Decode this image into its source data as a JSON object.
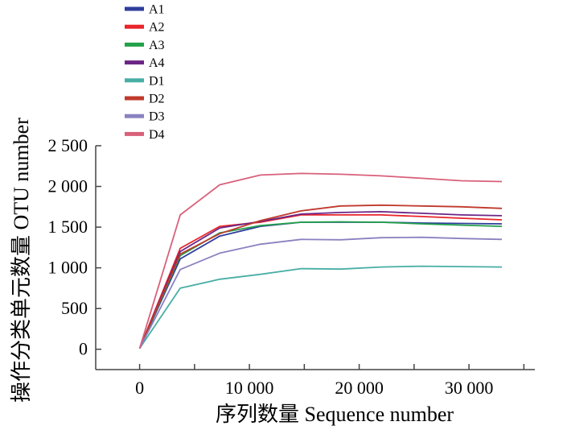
{
  "chart_data": {
    "type": "line",
    "xlabel": "序列数量 Sequence number",
    "ylabel": "操作分类单元数量 OTU number",
    "xlim": [
      -4000,
      36000
    ],
    "ylim": [
      -250,
      2500
    ],
    "x_ticks": [
      0,
      10000,
      20000,
      30000
    ],
    "x_tick_labels": [
      "0",
      "10 000",
      "20 000",
      "30 000"
    ],
    "y_ticks": [
      0,
      500,
      1000,
      1500,
      2000,
      2500
    ],
    "y_tick_labels": [
      "0",
      "500",
      "1 000",
      "1 500",
      "2 000",
      "2 500"
    ],
    "grid": false,
    "legend_position": "top-left",
    "x": [
      0,
      3700,
      7300,
      11000,
      14700,
      18300,
      22000,
      25700,
      29300,
      33000
    ],
    "series": [
      {
        "name": "A1",
        "color": "#2e3d9b",
        "values": [
          10,
          1110,
          1390,
          1510,
          1560,
          1560,
          1560,
          1550,
          1545,
          1540
        ]
      },
      {
        "name": "A2",
        "color": "#e8252b",
        "values": [
          10,
          1240,
          1510,
          1560,
          1650,
          1650,
          1650,
          1630,
          1610,
          1590
        ]
      },
      {
        "name": "A3",
        "color": "#22a14a",
        "values": [
          10,
          1150,
          1430,
          1520,
          1560,
          1565,
          1560,
          1540,
          1525,
          1510
        ]
      },
      {
        "name": "A4",
        "color": "#6b2585",
        "values": [
          10,
          1200,
          1490,
          1570,
          1660,
          1680,
          1690,
          1670,
          1650,
          1640
        ]
      },
      {
        "name": "D1",
        "color": "#48aea5",
        "values": [
          10,
          750,
          860,
          920,
          990,
          985,
          1010,
          1020,
          1015,
          1010
        ]
      },
      {
        "name": "D2",
        "color": "#c0392b",
        "values": [
          10,
          1170,
          1420,
          1580,
          1700,
          1760,
          1770,
          1760,
          1750,
          1730
        ]
      },
      {
        "name": "D3",
        "color": "#8a82c0",
        "values": [
          10,
          980,
          1180,
          1290,
          1350,
          1345,
          1370,
          1375,
          1360,
          1350
        ]
      },
      {
        "name": "D4",
        "color": "#d9607a",
        "values": [
          10,
          1650,
          2020,
          2140,
          2160,
          2150,
          2130,
          2100,
          2070,
          2060
        ]
      }
    ]
  }
}
